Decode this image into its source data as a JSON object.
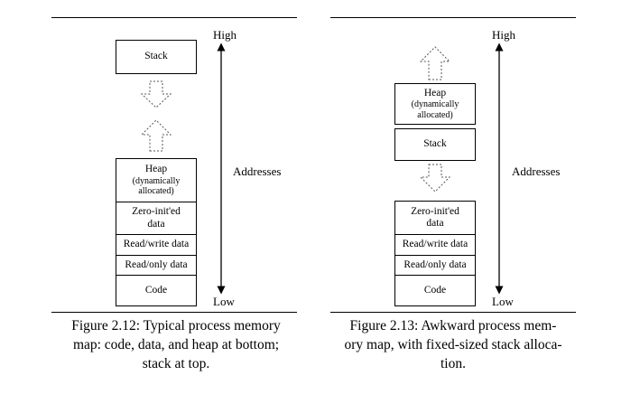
{
  "figure_left": {
    "axis": {
      "high": "High",
      "low": "Low",
      "label": "Addresses"
    },
    "top_box": "Stack",
    "heap": {
      "title": "Heap",
      "sub1": "(dynamically",
      "sub2": "allocated)"
    },
    "zero": {
      "line1": "Zero-init'ed",
      "line2": "data"
    },
    "rw": "Read/write data",
    "ro": "Read/only data",
    "code": "Code",
    "caption": {
      "line1": "Figure 2.12: Typical process memory",
      "line2": "map: code, data, and heap at bottom;",
      "line3": "stack at top."
    }
  },
  "figure_right": {
    "axis": {
      "high": "High",
      "low": "Low",
      "label": "Addresses"
    },
    "heap": {
      "title": "Heap",
      "sub1": "(dynamically",
      "sub2": "allocated)"
    },
    "stack": "Stack",
    "zero": {
      "line1": "Zero-init'ed",
      "line2": "data"
    },
    "rw": "Read/write data",
    "ro": "Read/only data",
    "code": "Code",
    "caption": {
      "line1": "Figure 2.13: Awkward process mem-",
      "line2": "ory map, with fixed-sized stack alloca-",
      "line3": "tion."
    }
  },
  "colors": {
    "ink": "#000000",
    "dashed_arrow": "#555555",
    "background": "#ffffff"
  }
}
